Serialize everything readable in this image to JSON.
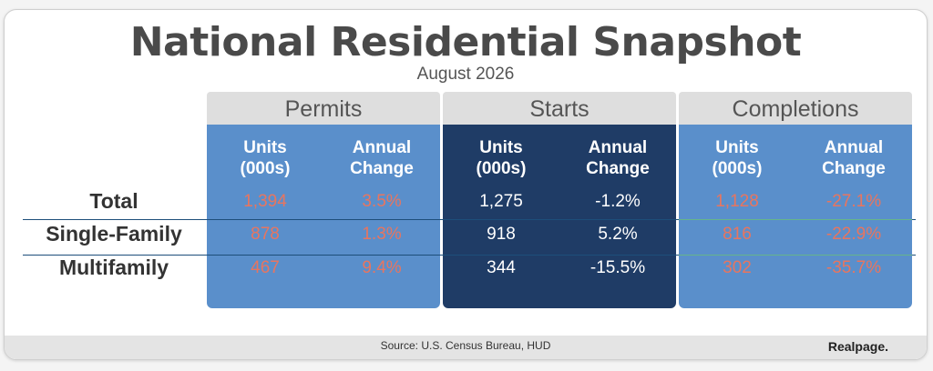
{
  "title": "National Residential Snapshot",
  "subtitle": "August 2026",
  "source": "Source: U.S. Census Bureau, HUD",
  "logo": "Realpage.",
  "colors": {
    "light_blue": "#5a8fcb",
    "dark_blue": "#1f3c66",
    "header_gray": "#dedede",
    "negative_on_light": "#e8755f",
    "text_on_dark": "#ffffff",
    "row_line_blue": "#1d4e7a",
    "row_line_green": "#66b58a"
  },
  "chart_data": {
    "type": "table",
    "title": "National Residential Snapshot",
    "subtitle": "August 2026",
    "groups": [
      {
        "name": "Permits",
        "headers": [
          "Units (000s)",
          "Annual Change"
        ],
        "style": "light"
      },
      {
        "name": "Starts",
        "headers": [
          "Units (000s)",
          "Annual Change"
        ],
        "style": "dark"
      },
      {
        "name": "Completions",
        "headers": [
          "Units (000s)",
          "Annual Change"
        ],
        "style": "light"
      }
    ],
    "rows": [
      {
        "label": "Total",
        "permits_units": "1,394",
        "permits_change": "3.5%",
        "starts_units": "1,275",
        "starts_change": "-1.2%",
        "completions_units": "1,128",
        "completions_change": "-27.1%"
      },
      {
        "label": "Single-Family",
        "permits_units": "878",
        "permits_change": "1.3%",
        "starts_units": "918",
        "starts_change": "5.2%",
        "completions_units": "816",
        "completions_change": "-22.9%"
      },
      {
        "label": "Multifamily",
        "permits_units": "467",
        "permits_change": "9.4%",
        "starts_units": "344",
        "starts_change": "-15.5%",
        "completions_units": "302",
        "completions_change": "-35.7%"
      }
    ],
    "source": "Source: U.S. Census Bureau, HUD"
  }
}
